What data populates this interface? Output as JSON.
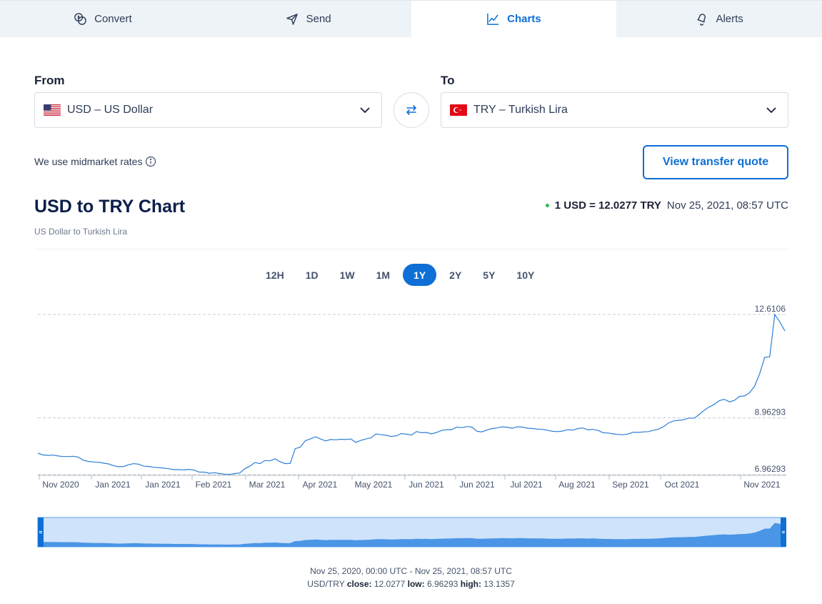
{
  "tabs": [
    {
      "label": "Convert",
      "icon": "coins-icon"
    },
    {
      "label": "Send",
      "icon": "send-icon"
    },
    {
      "label": "Charts",
      "icon": "chart-icon"
    },
    {
      "label": "Alerts",
      "icon": "bell-icon"
    }
  ],
  "active_tab": "Charts",
  "from": {
    "label": "From",
    "value": "USD – US Dollar",
    "flag": "us-flag-icon"
  },
  "to": {
    "label": "To",
    "value": "TRY – Turkish Lira",
    "flag": "tr-flag-icon"
  },
  "midmarket_text": "We use midmarket rates",
  "quote_button": "View transfer quote",
  "chart_title": "USD to TRY Chart",
  "chart_subtitle": "US Dollar to Turkish Lira",
  "rate": {
    "pair": "1 USD = 12.0277 TRY",
    "timestamp": "Nov 25, 2021, 08:57 UTC"
  },
  "ranges": [
    "12H",
    "1D",
    "1W",
    "1M",
    "1Y",
    "2Y",
    "5Y",
    "10Y"
  ],
  "active_range": "1Y",
  "footer": {
    "range_text": "Nov 25, 2020, 00:00 UTC - Nov 25, 2021, 08:57 UTC",
    "pair": "USD/TRY",
    "close_label": "close:",
    "close": "12.0277",
    "low_label": "low:",
    "low": "6.96293",
    "high_label": "high:",
    "high": "13.1357"
  },
  "colors": {
    "accent": "#0e6fd6",
    "line": "#2d7fd6",
    "navigator_fill": "#4a95e6",
    "navigator_bg": "#cfe3fb",
    "live_dot": "#2eb84c"
  },
  "chart_data": {
    "type": "line",
    "title": "",
    "xlabel": "",
    "ylabel": "",
    "x_ticks": [
      "Nov 2020",
      "Jan 2021",
      "Jan 2021",
      "Feb 2021",
      "Mar 2021",
      "Apr 2021",
      "May 2021",
      "Jun 2021",
      "Jun 2021",
      "Jul 2021",
      "Aug 2021",
      "Sep 2021",
      "Oct 2021",
      "Nov 2021"
    ],
    "y_reference_lines": [
      "12.6106",
      "8.96293",
      "6.96293"
    ],
    "ylim": [
      6.96293,
      12.6106
    ],
    "series": [
      {
        "values": [
          7.72,
          7.66,
          7.64,
          7.65,
          7.62,
          7.6,
          7.6,
          7.61,
          7.58,
          7.47,
          7.43,
          7.41,
          7.4,
          7.37,
          7.34,
          7.28,
          7.24,
          7.25,
          7.31,
          7.35,
          7.33,
          7.26,
          7.25,
          7.22,
          7.21,
          7.19,
          7.17,
          7.14,
          7.14,
          7.13,
          7.15,
          7.12,
          7.05,
          7.05,
          7.01,
          7.03,
          7.0,
          6.98,
          6.97,
          7.0,
          7.02,
          7.17,
          7.26,
          7.39,
          7.35,
          7.46,
          7.45,
          7.52,
          7.42,
          7.35,
          7.36,
          7.88,
          7.93,
          8.16,
          8.22,
          8.3,
          8.22,
          8.15,
          8.2,
          8.19,
          8.21,
          8.2,
          8.22,
          8.1,
          8.17,
          8.22,
          8.26,
          8.4,
          8.37,
          8.35,
          8.31,
          8.33,
          8.41,
          8.39,
          8.36,
          8.48,
          8.44,
          8.45,
          8.4,
          8.45,
          8.52,
          8.55,
          8.55,
          8.64,
          8.62,
          8.66,
          8.64,
          8.49,
          8.47,
          8.54,
          8.59,
          8.61,
          8.65,
          8.63,
          8.6,
          8.65,
          8.64,
          8.6,
          8.59,
          8.57,
          8.56,
          8.52,
          8.49,
          8.48,
          8.5,
          8.55,
          8.53,
          8.59,
          8.61,
          8.54,
          8.56,
          8.52,
          8.44,
          8.43,
          8.4,
          8.38,
          8.37,
          8.4,
          8.46,
          8.45,
          8.47,
          8.48,
          8.53,
          8.57,
          8.66,
          8.79,
          8.86,
          8.88,
          8.9,
          8.96,
          8.95,
          9.08,
          9.23,
          9.35,
          9.44,
          9.57,
          9.62,
          9.53,
          9.58,
          9.72,
          9.74,
          9.85,
          10.08,
          10.52,
          11.1,
          11.12,
          12.61,
          12.35,
          12.03
        ]
      }
    ],
    "navigator": {
      "start": "Nov 25, 2020",
      "end": "Nov 25, 2021"
    }
  }
}
